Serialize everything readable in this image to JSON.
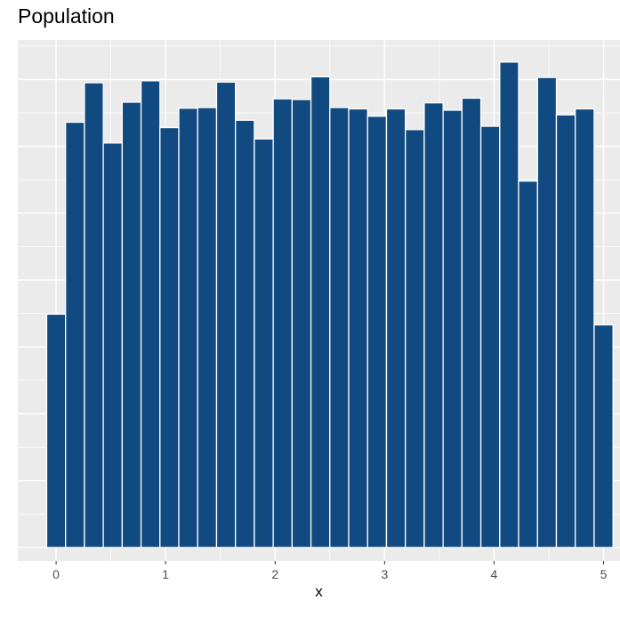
{
  "chart_data": {
    "type": "bar",
    "title": "Population",
    "xlabel": "x",
    "ylabel": "",
    "x_ticks": [
      0,
      1,
      2,
      3,
      4,
      5
    ],
    "xlim": [
      -0.35,
      5.15
    ],
    "bin_width": 0.1724,
    "bin_starts": [
      -0.0862,
      0.0862,
      0.2586,
      0.431,
      0.6034,
      0.7759,
      0.9483,
      1.1207,
      1.2931,
      1.4655,
      1.6379,
      1.8103,
      1.9828,
      2.1552,
      2.3276,
      2.5,
      2.6724,
      2.8448,
      3.0172,
      3.1897,
      3.3621,
      3.5345,
      3.7069,
      3.8793,
      4.0517,
      4.2241,
      4.3966,
      4.569,
      4.7414,
      4.9138
    ],
    "values": [
      34.9,
      63.6,
      69.5,
      60.5,
      66.6,
      69.8,
      62.8,
      65.7,
      65.8,
      69.6,
      63.9,
      61.1,
      67.1,
      67.0,
      70.4,
      65.8,
      65.6,
      64.5,
      65.6,
      62.5,
      66.5,
      65.4,
      67.2,
      63.0,
      72.6,
      54.8,
      70.3,
      64.7,
      65.6,
      33.3
    ],
    "ylim": [
      -2,
      75.9
    ],
    "grid": true,
    "bar_color": "#114a80",
    "bar_edge_color": "#ffffff",
    "panel_background": "#ebebeb",
    "grid_color": "#ffffff"
  }
}
